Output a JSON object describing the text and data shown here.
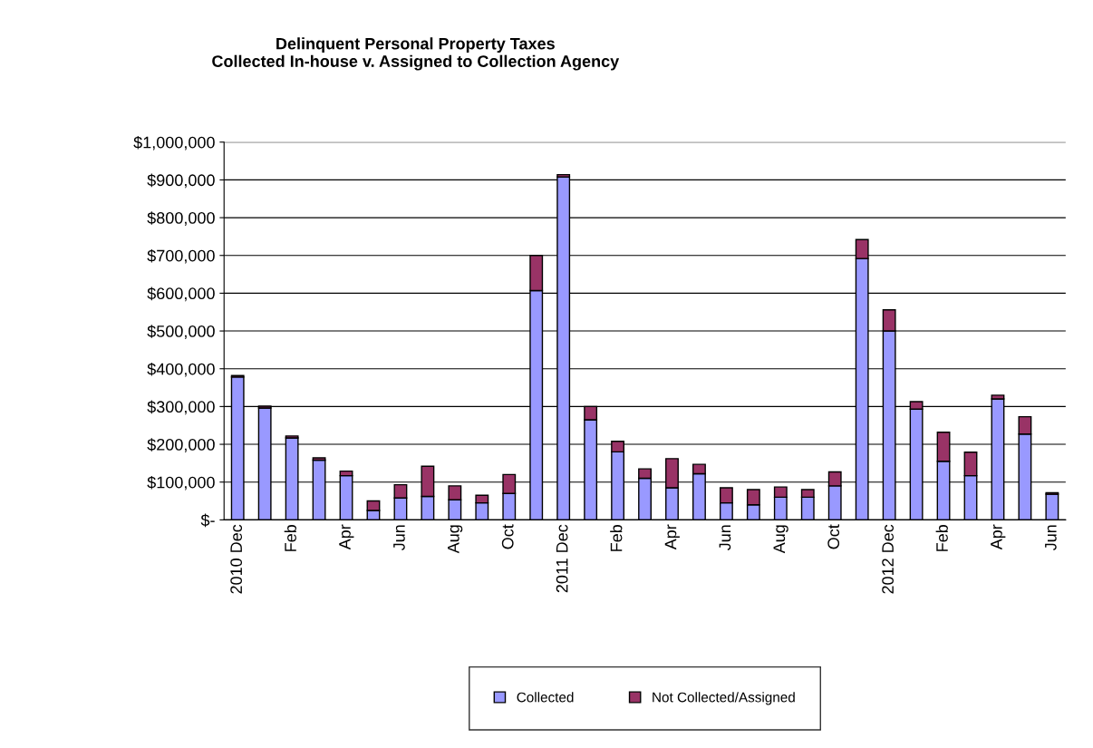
{
  "chart_data": {
    "type": "bar",
    "stacked": true,
    "title": "Delinquent Personal Property Taxes\nCollected In-house v. Assigned to Collection Agency",
    "categories": [
      "2010 Dec",
      null,
      "Feb",
      null,
      "Apr",
      null,
      "Jun",
      null,
      "Aug",
      null,
      "Oct",
      null,
      "2011 Dec",
      null,
      "Feb",
      null,
      "Apr",
      null,
      "Jun",
      null,
      "Aug",
      null,
      "Oct",
      null,
      "2012 Dec",
      null,
      "Feb",
      null,
      "Apr",
      null,
      "Jun"
    ],
    "series": [
      {
        "name": "Collected",
        "color": "#9999ff",
        "values": [
          378000,
          296000,
          217000,
          158000,
          117000,
          25000,
          58000,
          62000,
          53000,
          45000,
          70000,
          607000,
          908000,
          265000,
          180000,
          110000,
          85000,
          122000,
          45000,
          40000,
          60000,
          60000,
          90000,
          692000,
          500000,
          293000,
          155000,
          117000,
          320000,
          227000,
          68000
        ]
      },
      {
        "name": "Not Collected/Assigned",
        "color": "#993366",
        "values": [
          4000,
          5000,
          5000,
          6000,
          12000,
          25000,
          35000,
          80000,
          37000,
          20000,
          50000,
          93000,
          6000,
          35000,
          28000,
          25000,
          77000,
          25000,
          40000,
          40000,
          27000,
          20000,
          37000,
          50000,
          56000,
          20000,
          77000,
          62000,
          10000,
          46000,
          4000
        ]
      }
    ],
    "ylim": [
      0,
      1000000
    ],
    "yticks": [
      {
        "value": 0,
        "label": "$-"
      },
      {
        "value": 100000,
        "label": "$100,000"
      },
      {
        "value": 200000,
        "label": "$200,000"
      },
      {
        "value": 300000,
        "label": "$300,000"
      },
      {
        "value": 400000,
        "label": "$400,000"
      },
      {
        "value": 500000,
        "label": "$500,000"
      },
      {
        "value": 600000,
        "label": "$600,000"
      },
      {
        "value": 700000,
        "label": "$700,000"
      },
      {
        "value": 800000,
        "label": "$800,000"
      },
      {
        "value": 900000,
        "label": "$900,000"
      },
      {
        "value": 1000000,
        "label": "$1,000,000"
      }
    ],
    "grid": "y",
    "legend": "bottom"
  }
}
